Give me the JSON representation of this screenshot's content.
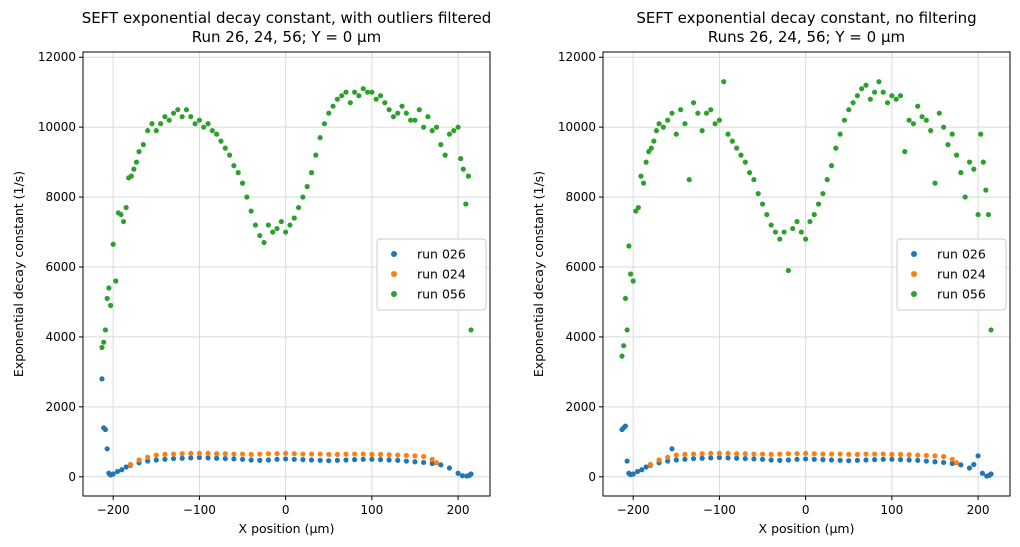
{
  "chart_data": [
    {
      "type": "scatter",
      "title": "SEFT exponential decay constant, with outliers filtered\nRun 26, 24, 56; Y = 0 µm",
      "xlabel": "X position (µm)",
      "ylabel": "Exponential decay constant (1/s)",
      "xlim": [
        -235,
        237
      ],
      "ylim": [
        -550,
        12150
      ],
      "xticks": [
        -200,
        -100,
        0,
        100,
        200
      ],
      "xtick_labels": [
        "−200",
        "−100",
        "0",
        "100",
        "200"
      ],
      "yticks": [
        0,
        2000,
        4000,
        6000,
        8000,
        10000,
        12000
      ],
      "ytick_labels": [
        "0",
        "2000",
        "4000",
        "6000",
        "8000",
        "10000",
        "12000"
      ],
      "grid": true,
      "legend_position": "center-right",
      "series": [
        {
          "name": "run 026",
          "color": "#1f77b4",
          "x": [
            -213,
            -211,
            -209,
            -207,
            -205,
            -203,
            -200,
            -195,
            -190,
            -185,
            -180,
            -170,
            -160,
            -150,
            -140,
            -130,
            -120,
            -110,
            -100,
            -90,
            -80,
            -70,
            -60,
            -50,
            -40,
            -30,
            -20,
            -10,
            0,
            10,
            20,
            30,
            40,
            50,
            60,
            70,
            80,
            90,
            100,
            110,
            120,
            130,
            140,
            150,
            160,
            170,
            180,
            190,
            200,
            205,
            210,
            213,
            215
          ],
          "y": [
            2800,
            1400,
            1350,
            800,
            100,
            50,
            80,
            150,
            200,
            280,
            330,
            400,
            450,
            480,
            500,
            520,
            530,
            540,
            550,
            540,
            530,
            520,
            510,
            500,
            480,
            470,
            480,
            500,
            510,
            500,
            490,
            480,
            470,
            460,
            470,
            480,
            490,
            500,
            500,
            490,
            480,
            470,
            450,
            430,
            410,
            380,
            340,
            250,
            100,
            30,
            20,
            40,
            80
          ]
        },
        {
          "name": "run 024",
          "color": "#ff7f0e",
          "x": [
            -180,
            -170,
            -160,
            -150,
            -140,
            -130,
            -120,
            -110,
            -100,
            -90,
            -80,
            -70,
            -60,
            -50,
            -40,
            -30,
            -20,
            -10,
            0,
            10,
            20,
            30,
            40,
            50,
            60,
            70,
            80,
            90,
            100,
            110,
            120,
            130,
            140,
            150,
            160,
            170,
            175
          ],
          "y": [
            350,
            480,
            560,
            620,
            640,
            650,
            660,
            670,
            670,
            670,
            660,
            660,
            650,
            650,
            640,
            650,
            660,
            660,
            670,
            660,
            650,
            650,
            650,
            640,
            640,
            650,
            650,
            650,
            640,
            640,
            630,
            620,
            610,
            600,
            580,
            500,
            400
          ]
        },
        {
          "name": "run 056",
          "color": "#2ca02c",
          "x": [
            -213,
            -211,
            -209,
            -207,
            -205,
            -203,
            -200,
            -197,
            -194,
            -191,
            -188,
            -185,
            -182,
            -179,
            -176,
            -173,
            -170,
            -165,
            -160,
            -155,
            -150,
            -145,
            -140,
            -135,
            -130,
            -125,
            -120,
            -115,
            -110,
            -105,
            -100,
            -95,
            -90,
            -85,
            -80,
            -75,
            -70,
            -65,
            -60,
            -55,
            -50,
            -45,
            -40,
            -35,
            -30,
            -25,
            -20,
            -15,
            -10,
            -5,
            0,
            5,
            10,
            15,
            20,
            25,
            30,
            35,
            40,
            45,
            50,
            55,
            60,
            65,
            70,
            75,
            80,
            85,
            90,
            95,
            100,
            105,
            110,
            115,
            120,
            125,
            130,
            135,
            140,
            145,
            150,
            155,
            160,
            165,
            170,
            175,
            180,
            185,
            190,
            195,
            200,
            203,
            206,
            209,
            212,
            215
          ],
          "y": [
            3700,
            3850,
            4200,
            5100,
            5400,
            4900,
            6650,
            5600,
            7550,
            7500,
            7300,
            7700,
            8550,
            8600,
            8800,
            9000,
            9300,
            9500,
            9900,
            10100,
            9900,
            10100,
            10300,
            10200,
            10400,
            10500,
            10300,
            10500,
            10300,
            10100,
            10200,
            10000,
            10100,
            9900,
            9800,
            9600,
            9400,
            9200,
            8900,
            8700,
            8400,
            8000,
            7600,
            7200,
            6900,
            6700,
            7200,
            7000,
            7100,
            7300,
            7000,
            7200,
            7400,
            7700,
            8000,
            8300,
            8700,
            9200,
            9700,
            10100,
            10400,
            10600,
            10800,
            10900,
            11000,
            10700,
            11000,
            10900,
            11100,
            11000,
            11000,
            10800,
            10900,
            10700,
            10500,
            10300,
            10400,
            10600,
            10400,
            10200,
            10200,
            10500,
            10000,
            10300,
            9900,
            10000,
            9500,
            9200,
            9800,
            9900,
            10000,
            9100,
            8800,
            7800,
            8600,
            4200
          ]
        }
      ]
    },
    {
      "type": "scatter",
      "title": "SEFT exponential decay constant, no filtering\nRuns 26, 24, 56; Y = 0 µm",
      "xlabel": "X position (µm)",
      "ylabel": "Exponential decay constant (1/s)",
      "xlim": [
        -235,
        237
      ],
      "ylim": [
        -550,
        12150
      ],
      "xticks": [
        -200,
        -100,
        0,
        100,
        200
      ],
      "xtick_labels": [
        "−200",
        "−100",
        "0",
        "100",
        "200"
      ],
      "yticks": [
        0,
        2000,
        4000,
        6000,
        8000,
        10000,
        12000
      ],
      "ytick_labels": [
        "0",
        "2000",
        "4000",
        "6000",
        "8000",
        "10000",
        "12000"
      ],
      "grid": true,
      "legend_position": "center-right",
      "series": [
        {
          "name": "run 026",
          "color": "#1f77b4",
          "x": [
            -213,
            -211,
            -209,
            -207,
            -205,
            -203,
            -200,
            -195,
            -190,
            -185,
            -180,
            -170,
            -160,
            -155,
            -150,
            -140,
            -130,
            -120,
            -110,
            -100,
            -90,
            -80,
            -70,
            -60,
            -50,
            -40,
            -30,
            -20,
            -10,
            0,
            10,
            20,
            30,
            40,
            50,
            60,
            70,
            80,
            90,
            100,
            110,
            120,
            130,
            140,
            150,
            160,
            170,
            180,
            190,
            195,
            200,
            205,
            210,
            213,
            215
          ],
          "y": [
            1350,
            1400,
            1450,
            450,
            100,
            60,
            80,
            150,
            200,
            280,
            330,
            400,
            450,
            800,
            480,
            500,
            520,
            530,
            540,
            550,
            540,
            530,
            520,
            510,
            500,
            480,
            470,
            480,
            500,
            510,
            500,
            490,
            480,
            470,
            460,
            470,
            480,
            490,
            500,
            500,
            490,
            480,
            470,
            450,
            430,
            410,
            380,
            340,
            250,
            350,
            600,
            100,
            20,
            40,
            80
          ]
        },
        {
          "name": "run 024",
          "color": "#ff7f0e",
          "x": [
            -180,
            -170,
            -160,
            -150,
            -140,
            -130,
            -120,
            -110,
            -100,
            -90,
            -80,
            -70,
            -60,
            -50,
            -40,
            -30,
            -20,
            -10,
            0,
            10,
            20,
            30,
            40,
            50,
            60,
            70,
            80,
            90,
            100,
            110,
            120,
            130,
            140,
            150,
            160,
            170,
            175
          ],
          "y": [
            350,
            480,
            560,
            620,
            640,
            650,
            660,
            670,
            670,
            670,
            660,
            660,
            650,
            650,
            640,
            650,
            660,
            660,
            670,
            660,
            650,
            650,
            650,
            640,
            640,
            650,
            650,
            650,
            640,
            640,
            630,
            620,
            610,
            600,
            580,
            500,
            400
          ]
        },
        {
          "name": "run 056",
          "color": "#2ca02c",
          "x": [
            -213,
            -211,
            -209,
            -207,
            -205,
            -203,
            -200,
            -197,
            -194,
            -191,
            -188,
            -185,
            -182,
            -179,
            -176,
            -173,
            -170,
            -165,
            -160,
            -155,
            -150,
            -145,
            -140,
            -135,
            -130,
            -125,
            -120,
            -115,
            -110,
            -105,
            -100,
            -95,
            -90,
            -85,
            -80,
            -75,
            -70,
            -65,
            -60,
            -55,
            -50,
            -45,
            -40,
            -35,
            -30,
            -25,
            -20,
            -15,
            -10,
            -5,
            0,
            5,
            10,
            15,
            20,
            25,
            30,
            35,
            40,
            45,
            50,
            55,
            60,
            65,
            70,
            75,
            80,
            85,
            90,
            95,
            100,
            105,
            110,
            115,
            120,
            125,
            130,
            135,
            140,
            145,
            150,
            155,
            160,
            165,
            170,
            175,
            180,
            185,
            190,
            195,
            200,
            203,
            206,
            209,
            212,
            215
          ],
          "y": [
            3450,
            3750,
            5100,
            4200,
            6600,
            5800,
            5600,
            7600,
            7700,
            8600,
            8400,
            9000,
            9300,
            9400,
            9600,
            9900,
            10100,
            10000,
            10200,
            10400,
            9800,
            10500,
            10100,
            8500,
            10700,
            10400,
            9900,
            10400,
            10500,
            10100,
            10200,
            11300,
            9800,
            9600,
            9400,
            9200,
            9000,
            8700,
            8500,
            8100,
            7800,
            7500,
            7200,
            7000,
            6800,
            7000,
            5900,
            7100,
            7300,
            7000,
            6800,
            7300,
            7500,
            7800,
            8100,
            8500,
            8900,
            9400,
            9800,
            10200,
            10500,
            10700,
            10900,
            11100,
            11200,
            10800,
            11000,
            11300,
            11000,
            10700,
            10900,
            10800,
            10900,
            9300,
            10200,
            10100,
            10600,
            10300,
            10200,
            9900,
            8400,
            10400,
            10000,
            9500,
            9800,
            9200,
            8700,
            8000,
            9000,
            8800,
            7500,
            9800,
            9000,
            8200,
            7500,
            4200
          ]
        }
      ]
    }
  ]
}
